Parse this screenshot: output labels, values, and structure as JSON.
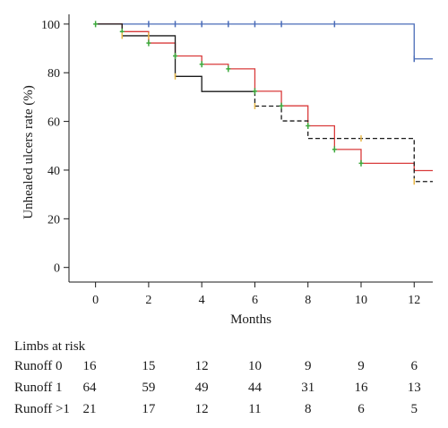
{
  "chart_data": {
    "type": "line",
    "title": "",
    "xlabel": "Months",
    "ylabel": "Unhealed ulcers rate (%)",
    "xlim": [
      -1,
      12.7
    ],
    "ylim": [
      -6,
      104
    ],
    "x_ticks": [
      "0",
      "2",
      "4",
      "6",
      "8",
      "10",
      "12"
    ],
    "x_tick_values": [
      0,
      2,
      4,
      6,
      8,
      10,
      12
    ],
    "y_ticks": [
      "0",
      "20",
      "40",
      "60",
      "80",
      "100"
    ],
    "y_tick_values": [
      0,
      20,
      40,
      60,
      80,
      100
    ],
    "grid": false,
    "legend": "none",
    "series": [
      {
        "color": "#4a6cb8",
        "dashed": false,
        "steps": [
          [
            0,
            100
          ],
          [
            12,
            85.7
          ],
          [
            12.7,
            85.7
          ]
        ],
        "censor_marks": [
          [
            2,
            100
          ],
          [
            3,
            100
          ],
          [
            4,
            100
          ],
          [
            5,
            100
          ],
          [
            6,
            100
          ],
          [
            7,
            100
          ],
          [
            9,
            100
          ],
          [
            12,
            85.7
          ]
        ],
        "censor_color": "#4a6cb8"
      },
      {
        "color": "#d93b3b",
        "dashed": false,
        "steps": [
          [
            0,
            100
          ],
          [
            1,
            96.9
          ],
          [
            2,
            92.2
          ],
          [
            3,
            86.9
          ],
          [
            4,
            83.5
          ],
          [
            5,
            81.6
          ],
          [
            6,
            72.4
          ],
          [
            7,
            66.4
          ],
          [
            8,
            58.2
          ],
          [
            9,
            48.5
          ],
          [
            10,
            42.8
          ],
          [
            12,
            39.8
          ],
          [
            12.7,
            39.8
          ]
        ],
        "censor_marks": [
          [
            0,
            100
          ],
          [
            1,
            96.9
          ],
          [
            2,
            92.2
          ],
          [
            3,
            86.9
          ],
          [
            4,
            83.5
          ],
          [
            5,
            81.6
          ],
          [
            6,
            72.4
          ],
          [
            7,
            66.4
          ],
          [
            8,
            58.2
          ],
          [
            9,
            48.5
          ],
          [
            10,
            42.8
          ]
        ],
        "censor_color": "#3caa3c"
      },
      {
        "color": "#1a1a1a",
        "dashed": false,
        "steps": [
          [
            0,
            100
          ],
          [
            1,
            95.2
          ],
          [
            3,
            78.5
          ],
          [
            4,
            72.3
          ],
          [
            6,
            72.3
          ]
        ],
        "censor_marks": [
          [
            1,
            95.2
          ],
          [
            2,
            95.2
          ],
          [
            3,
            78.5
          ]
        ],
        "censor_color": "#e8b848"
      },
      {
        "color": "#1a1a1a",
        "dashed": true,
        "steps": [
          [
            6,
            72.3
          ],
          [
            6,
            66.3
          ],
          [
            7,
            60.2
          ],
          [
            8,
            53.0
          ],
          [
            12,
            35.3
          ],
          [
            12.7,
            35.3
          ]
        ],
        "censor_marks": [
          [
            6,
            66.3
          ],
          [
            10,
            53.0
          ],
          [
            12,
            35.3
          ]
        ],
        "censor_color": "#e8b848"
      }
    ]
  },
  "risk_table": {
    "title": "Limbs at risk",
    "rows": [
      {
        "label": "Runoff 0",
        "values": [
          "16",
          "15",
          "12",
          "10",
          "9",
          "9",
          "6"
        ]
      },
      {
        "label": "Runoff 1",
        "values": [
          "64",
          "59",
          "49",
          "44",
          "31",
          "16",
          "13"
        ]
      },
      {
        "label": "Runoff >1",
        "values": [
          "21",
          "17",
          "12",
          "11",
          "8",
          "6",
          "5"
        ]
      }
    ]
  }
}
